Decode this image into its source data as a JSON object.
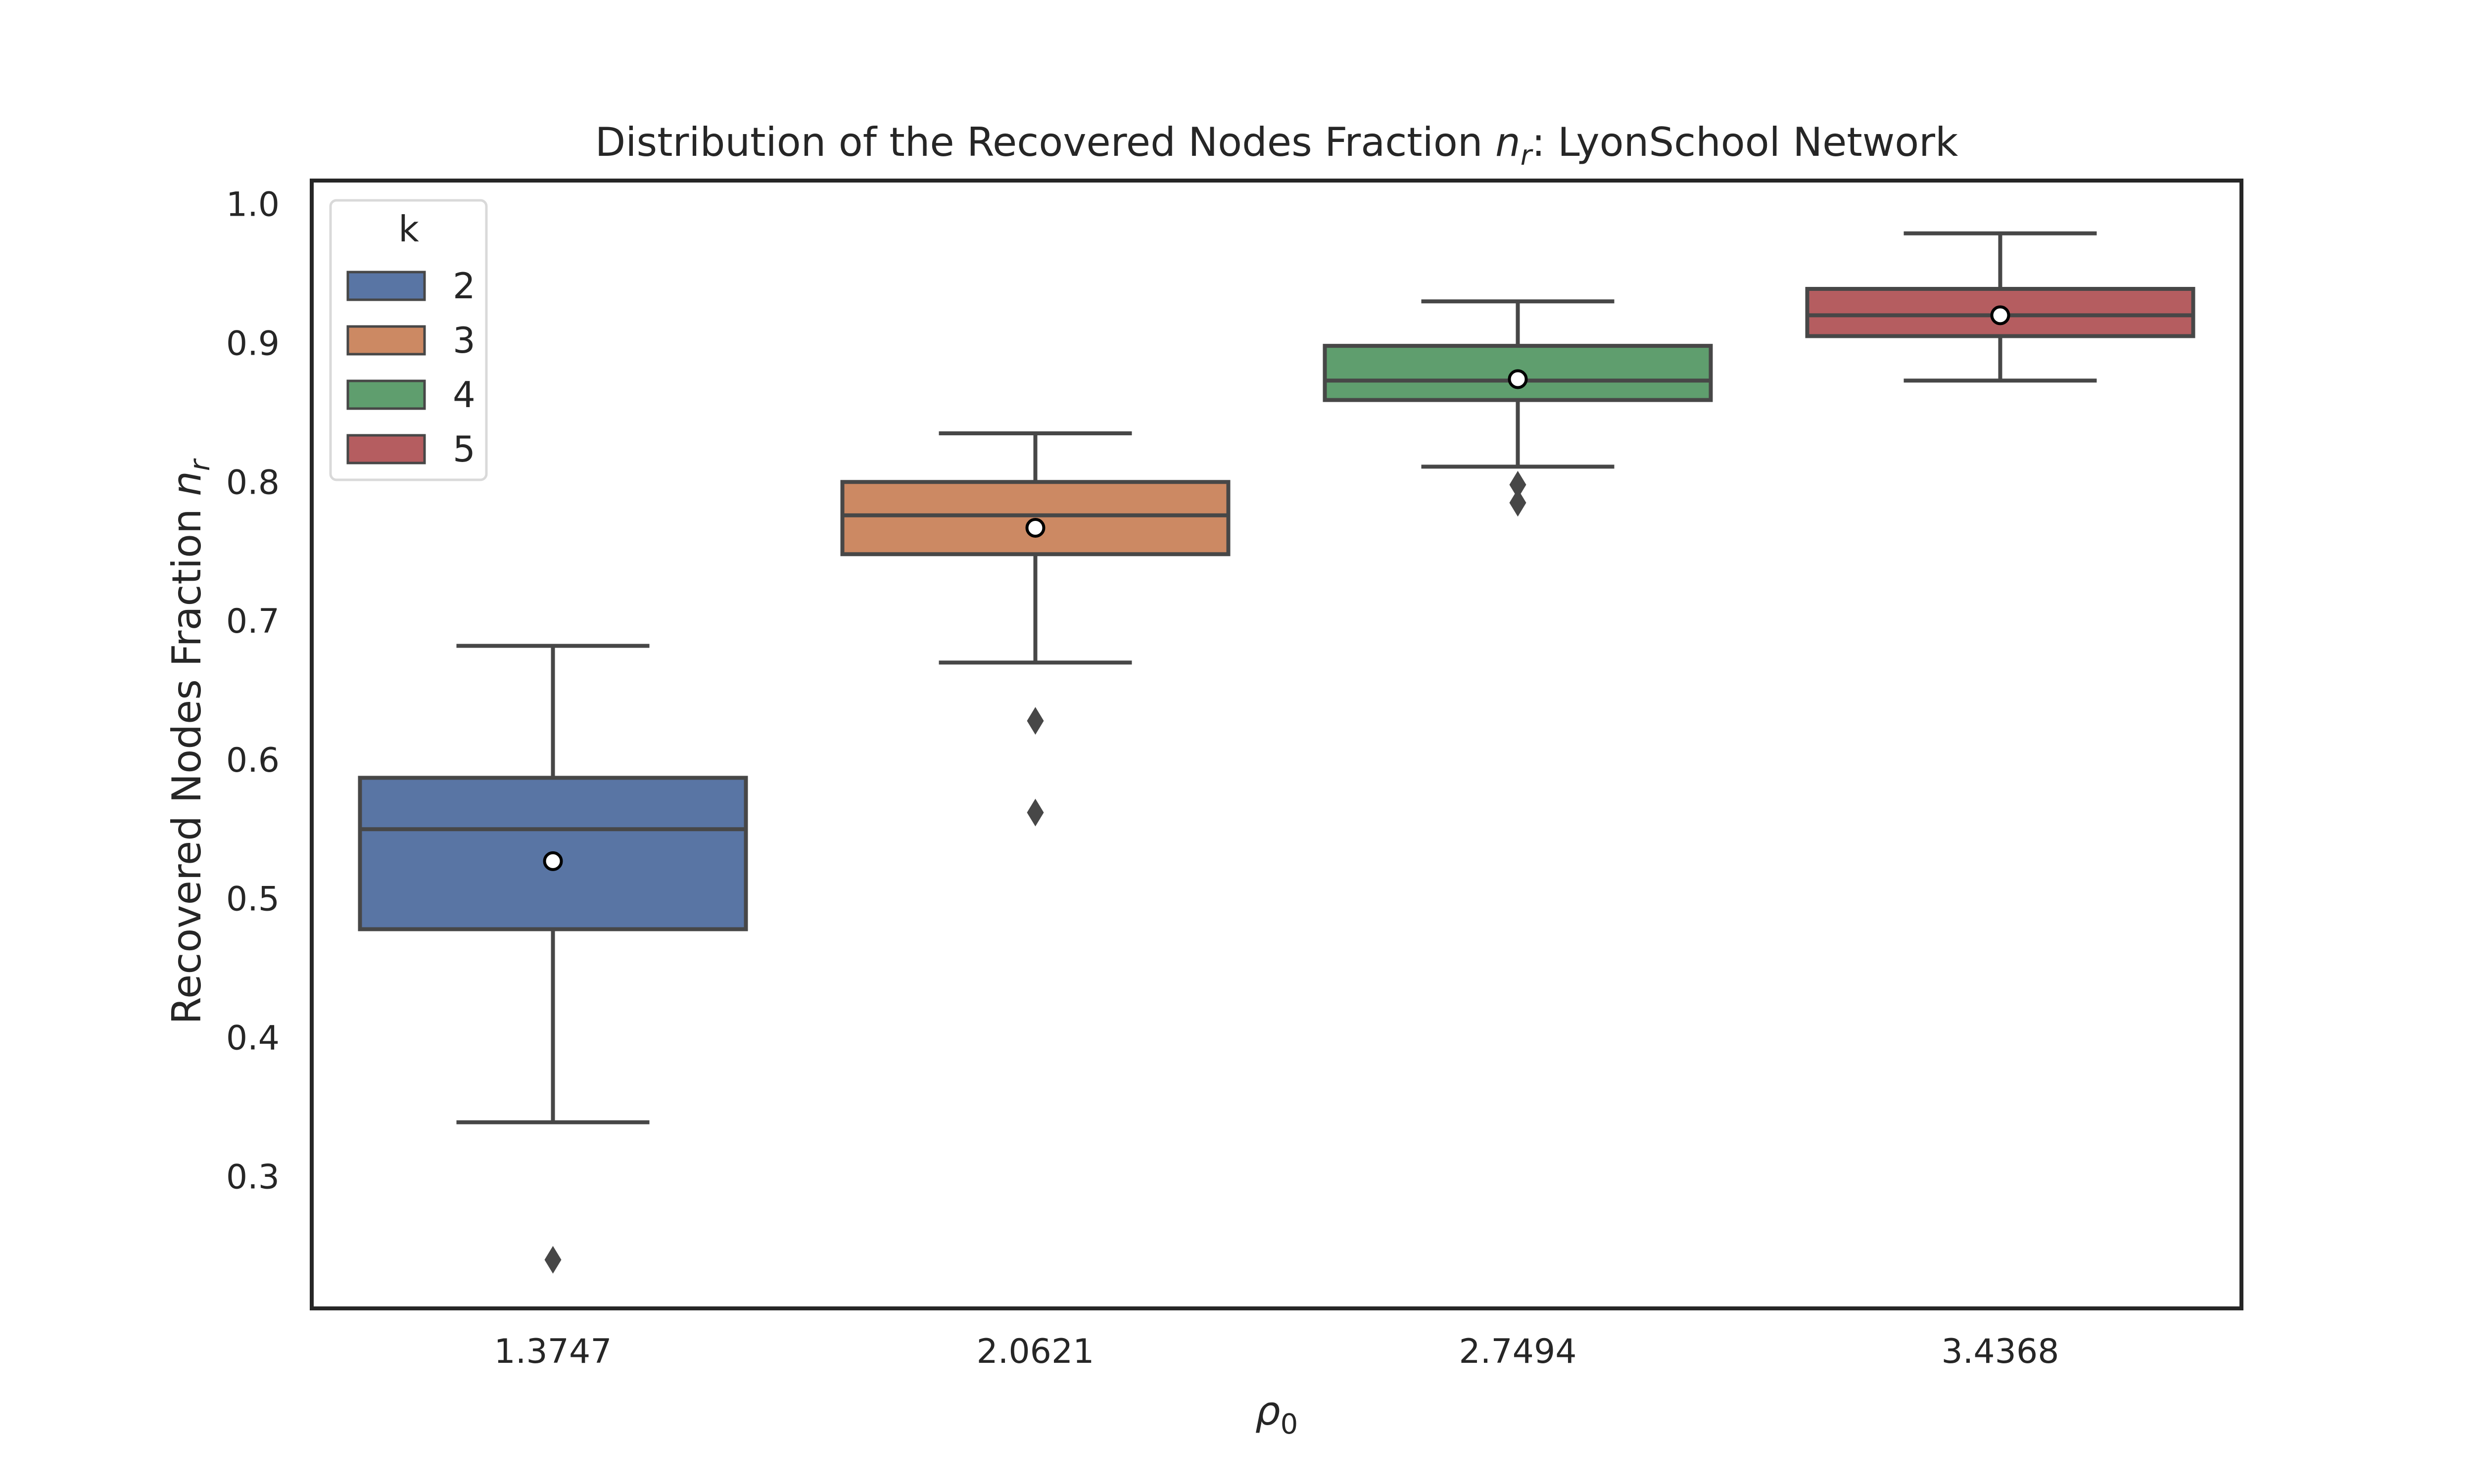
{
  "chart_data": {
    "type": "box",
    "title": {
      "prefix": "Distribution of the Recovered Nodes Fraction ",
      "var": "n",
      "sub": "r",
      "suffix": ": LyonSchool Network"
    },
    "xlabel": {
      "var": "ρ",
      "sub": "0"
    },
    "ylabel": {
      "prefix": "Recovered Nodes Fraction ",
      "var": "n",
      "sub": "r"
    },
    "categories": [
      "1.3747",
      "2.0621",
      "2.7494",
      "3.4368"
    ],
    "ylim": [
      0.205,
      1.017
    ],
    "yticks": [
      0.3,
      0.4,
      0.5,
      0.6,
      0.7,
      0.8,
      0.9,
      1.0
    ],
    "ytick_labels": [
      "0.3",
      "0.4",
      "0.5",
      "0.6",
      "0.7",
      "0.8",
      "0.9",
      "1.0"
    ],
    "legend": {
      "title": "k",
      "position": "top-left",
      "entries": [
        "2",
        "3",
        "4",
        "5"
      ]
    },
    "grid": false,
    "boxes": [
      {
        "k": "2",
        "color": "#5975a4",
        "whisker_low": 0.339,
        "q1": 0.478,
        "median": 0.55,
        "q3": 0.587,
        "whisker_high": 0.682,
        "mean": 0.527,
        "outliers": [
          0.24
        ]
      },
      {
        "k": "3",
        "color": "#cc8963",
        "whisker_low": 0.67,
        "q1": 0.748,
        "median": 0.776,
        "q3": 0.8,
        "whisker_high": 0.835,
        "mean": 0.767,
        "outliers": [
          0.628,
          0.562
        ]
      },
      {
        "k": "4",
        "color": "#5f9e6e",
        "whisker_low": 0.811,
        "q1": 0.859,
        "median": 0.873,
        "q3": 0.898,
        "whisker_high": 0.93,
        "mean": 0.874,
        "outliers": [
          0.798,
          0.785
        ]
      },
      {
        "k": "5",
        "color": "#b55d60",
        "whisker_low": 0.873,
        "q1": 0.905,
        "median": 0.92,
        "q3": 0.939,
        "whisker_high": 0.979,
        "mean": 0.92,
        "outliers": []
      }
    ]
  }
}
